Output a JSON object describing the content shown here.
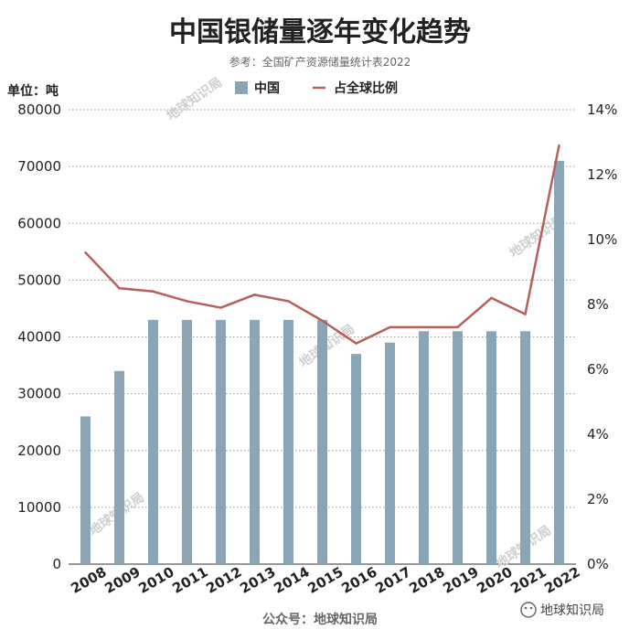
{
  "watermark_text": "地球知识局",
  "footer": "公众号：地球知识局",
  "brand": "地球知识局",
  "chart_data": {
    "type": "bar",
    "title": "中国银储量逐年变化趋势",
    "subtitle": "参考：全国矿产资源储量统计表2022",
    "ylabel": "单位：吨",
    "categories": [
      "2008",
      "2009",
      "2010",
      "2011",
      "2012",
      "2013",
      "2014",
      "2015",
      "2016",
      "2017",
      "2018",
      "2019",
      "2020",
      "2021",
      "2022"
    ],
    "series": [
      {
        "name": "中国",
        "type": "bar",
        "axis": "left",
        "color": "#8aa6b6",
        "values": [
          26000,
          34000,
          43000,
          43000,
          43000,
          43000,
          43000,
          43000,
          37000,
          39000,
          41000,
          41000,
          41000,
          41000,
          71000
        ]
      },
      {
        "name": "占全球比例",
        "type": "line",
        "axis": "right",
        "color": "#b5605a",
        "values": [
          9.6,
          8.5,
          8.4,
          8.1,
          7.9,
          8.3,
          8.1,
          7.5,
          6.8,
          7.3,
          7.3,
          7.3,
          8.2,
          7.7,
          12.9
        ]
      }
    ],
    "ylim": [
      0,
      80000
    ],
    "y_ticks": [
      "0",
      "10000",
      "20000",
      "30000",
      "40000",
      "50000",
      "60000",
      "70000",
      "80000"
    ],
    "y2lim": [
      0,
      14
    ],
    "y2_ticks": [
      "0%",
      "2%",
      "4%",
      "6%",
      "8%",
      "10%",
      "12%",
      "14%"
    ],
    "grid": true,
    "legend_position": "top-center"
  }
}
